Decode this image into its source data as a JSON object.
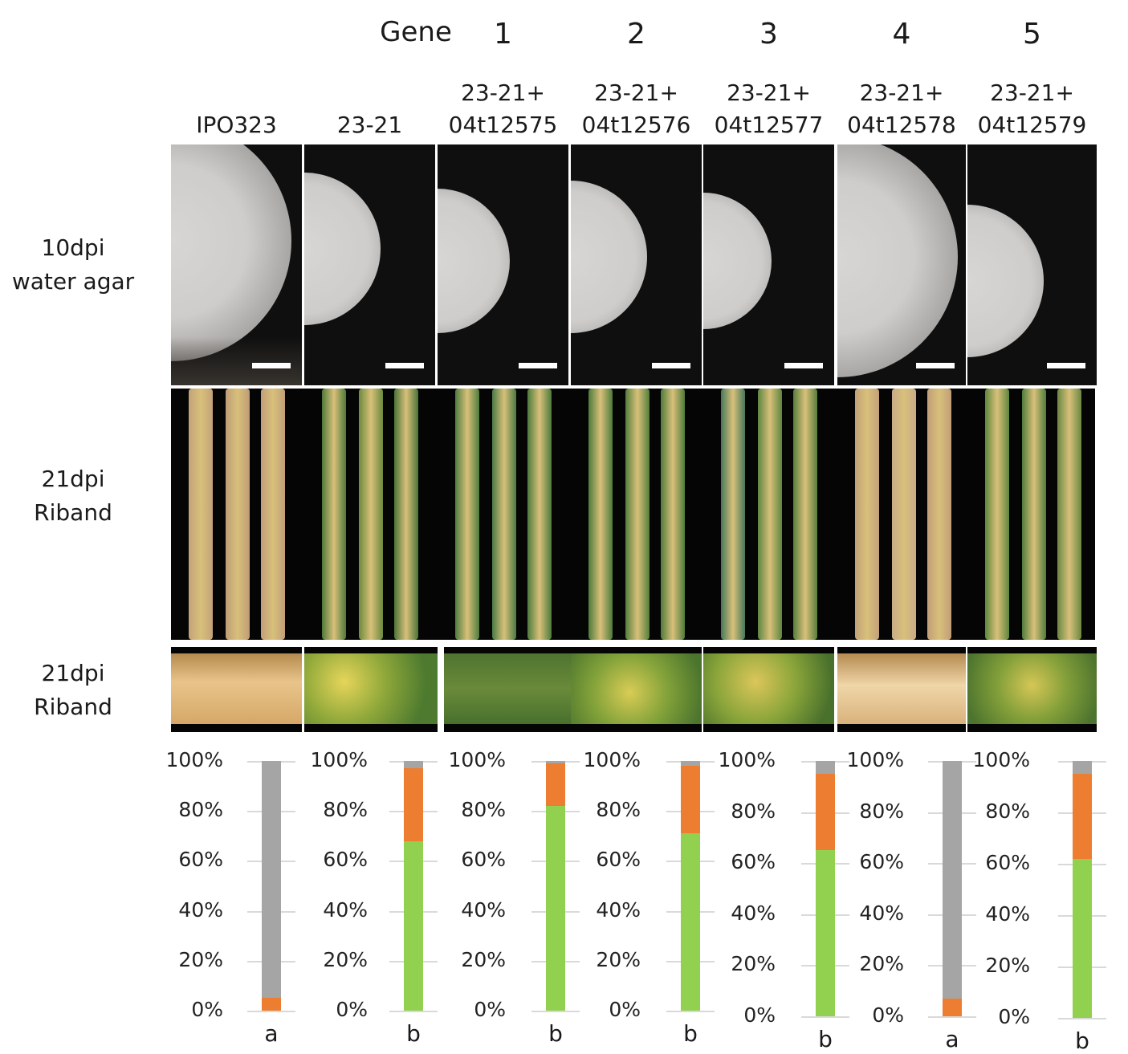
{
  "header": {
    "gene_title": "Gene",
    "gene_numbers": [
      "1",
      "2",
      "3",
      "4",
      "5"
    ]
  },
  "columns": [
    {
      "line1": "",
      "line2": "IPO323"
    },
    {
      "line1": "",
      "line2": "23-21"
    },
    {
      "line1": "23-21+",
      "line2": "04t12575"
    },
    {
      "line1": "23-21+",
      "line2": "04t12576"
    },
    {
      "line1": "23-21+",
      "line2": "04t12577"
    },
    {
      "line1": "23-21+",
      "line2": "04t12578"
    },
    {
      "line1": "23-21+",
      "line2": "04t12579"
    }
  ],
  "rows": [
    {
      "line1": "10dpi",
      "line2": "water agar"
    },
    {
      "line1": "21dpi",
      "line2": "Riband"
    },
    {
      "line1": "21dpi",
      "line2": "Riband"
    }
  ],
  "colors": {
    "green": "#92d050",
    "orange": "#ed7d31",
    "gray": "#a5a5a5",
    "plate_bg": "#0f0f0f",
    "leaf_bg": "#050505"
  },
  "chart_data": {
    "type": "bar",
    "stacked": true,
    "y_tick_labels": [
      "100%",
      "80%",
      "60%",
      "40%",
      "20%",
      "0%"
    ],
    "ylim": [
      0,
      100
    ],
    "categories": [
      "IPO323",
      "23-21",
      "23-21+04t12575",
      "23-21+04t12576",
      "23-21+04t12577",
      "23-21+04t12578",
      "23-21+04t12579"
    ],
    "series": [
      {
        "color": "green",
        "values": [
          0,
          68,
          82,
          71,
          65,
          0,
          62
        ]
      },
      {
        "color": "orange",
        "values": [
          5,
          29,
          17,
          27,
          30,
          7,
          33
        ]
      },
      {
        "color": "gray",
        "values": [
          95,
          3,
          1,
          2,
          5,
          93,
          5
        ]
      }
    ],
    "significance_letters": [
      "a",
      "b",
      "b",
      "b",
      "b",
      "a",
      "b"
    ]
  }
}
